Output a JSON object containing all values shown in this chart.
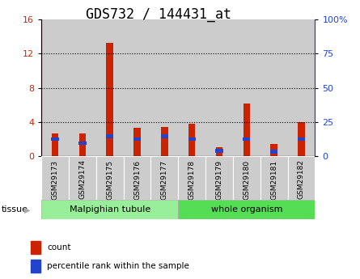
{
  "title": "GDS732 / 144431_at",
  "categories": [
    "GSM29173",
    "GSM29174",
    "GSM29175",
    "GSM29176",
    "GSM29177",
    "GSM29178",
    "GSM29179",
    "GSM29180",
    "GSM29181",
    "GSM29182"
  ],
  "count_values": [
    2.7,
    2.7,
    13.3,
    3.3,
    3.4,
    3.8,
    1.1,
    6.2,
    1.4,
    4.0
  ],
  "percentile_scaled": [
    14,
    11,
    16,
    14,
    16,
    14,
    5.5,
    14,
    4.7,
    14
  ],
  "ylim_left": [
    0,
    16
  ],
  "ylim_right": [
    0,
    100
  ],
  "yticks_left": [
    0,
    4,
    8,
    12,
    16
  ],
  "yticks_right": [
    0,
    25,
    50,
    75,
    100
  ],
  "ytick_labels_right": [
    "0",
    "25",
    "50",
    "75",
    "100%"
  ],
  "count_color": "#cc2200",
  "percentile_color": "#2244cc",
  "bar_bg_color": "#cccccc",
  "tissue_groups": [
    {
      "label": "Malpighian tubule",
      "start": 0,
      "end": 5,
      "color": "#99ee99"
    },
    {
      "label": "whole organism",
      "start": 5,
      "end": 10,
      "color": "#55dd55"
    }
  ],
  "legend_items": [
    {
      "label": "count",
      "color": "#cc2200"
    },
    {
      "label": "percentile rank within the sample",
      "color": "#2244cc"
    }
  ],
  "bar_width": 0.25,
  "tissue_label": "tissue",
  "title_fontsize": 12,
  "tick_fontsize": 8,
  "white": "#ffffff",
  "black": "#000000",
  "gray_border": "#aaaaaa"
}
